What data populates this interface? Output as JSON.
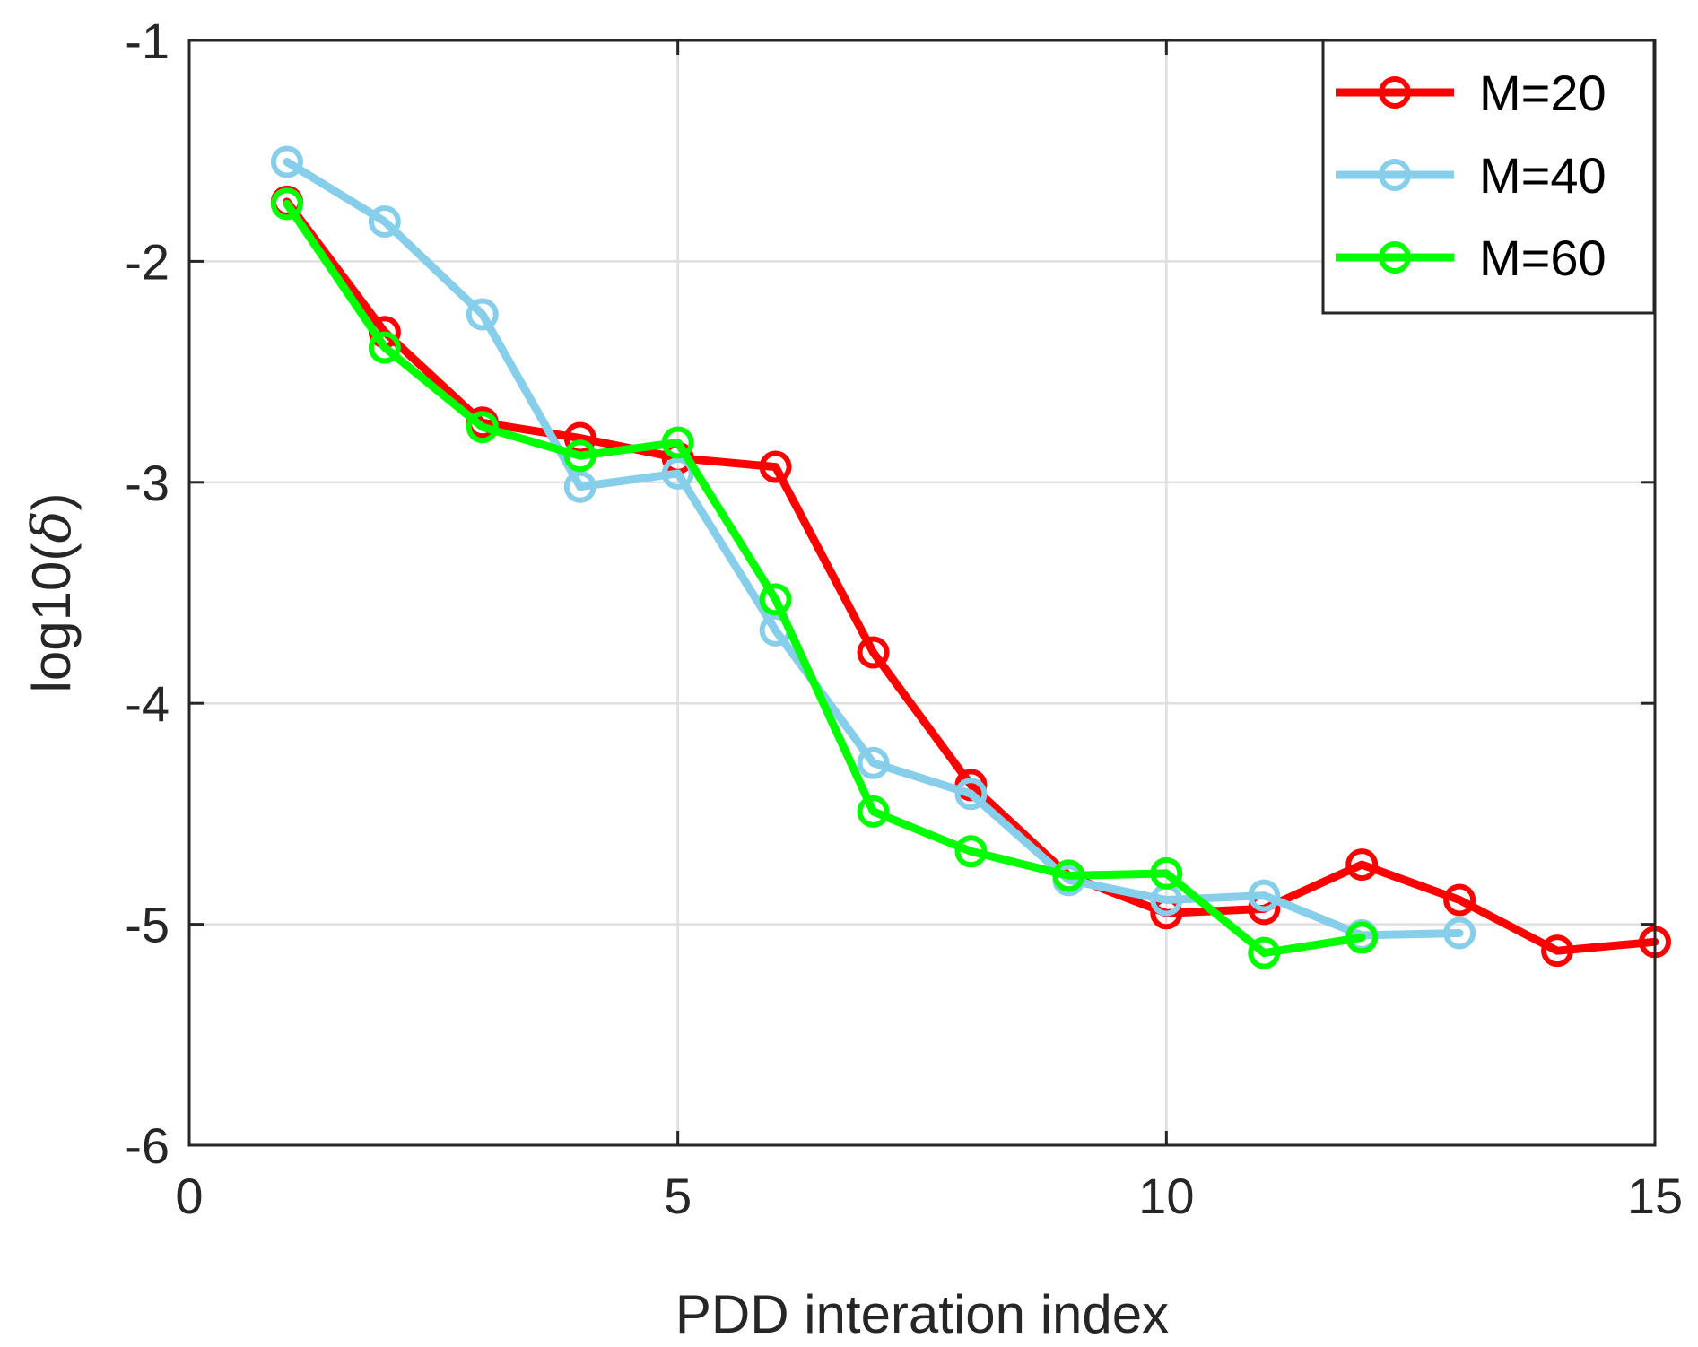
{
  "chart_data": {
    "type": "line",
    "title": "",
    "xlabel": "PDD interation index",
    "ylabel_prefix": "log10(",
    "ylabel_symbol": "δ",
    "ylabel_suffix": ")",
    "xlim": [
      0,
      15
    ],
    "ylim": [
      -6,
      -1
    ],
    "xticks": [
      0,
      5,
      10,
      15
    ],
    "yticks": [
      -1,
      -2,
      -3,
      -4,
      -5,
      -6
    ],
    "grid": true,
    "legend_position": "top-right",
    "series": [
      {
        "name": "M=20",
        "color": "#ff0000",
        "x": [
          1,
          2,
          3,
          4,
          5,
          6,
          7,
          8,
          9,
          10,
          11,
          12,
          13,
          14,
          15
        ],
        "y": [
          -1.73,
          -2.32,
          -2.73,
          -2.8,
          -2.89,
          -2.93,
          -3.77,
          -4.37,
          -4.78,
          -4.95,
          -4.93,
          -4.73,
          -4.89,
          -5.12,
          -5.08
        ]
      },
      {
        "name": "M=40",
        "color": "#87ceeb",
        "x": [
          1,
          2,
          3,
          4,
          5,
          6,
          7,
          8,
          9,
          10,
          11,
          12,
          13
        ],
        "y": [
          -1.55,
          -1.82,
          -2.24,
          -3.02,
          -2.96,
          -3.67,
          -4.27,
          -4.41,
          -4.8,
          -4.89,
          -4.87,
          -5.05,
          -5.04
        ]
      },
      {
        "name": "M=60",
        "color": "#00ff00",
        "x": [
          1,
          2,
          3,
          4,
          5,
          6,
          7,
          8,
          9,
          10,
          11,
          12
        ],
        "y": [
          -1.74,
          -2.39,
          -2.75,
          -2.88,
          -2.82,
          -3.53,
          -4.49,
          -4.67,
          -4.78,
          -4.77,
          -5.13,
          -5.06
        ]
      }
    ]
  }
}
